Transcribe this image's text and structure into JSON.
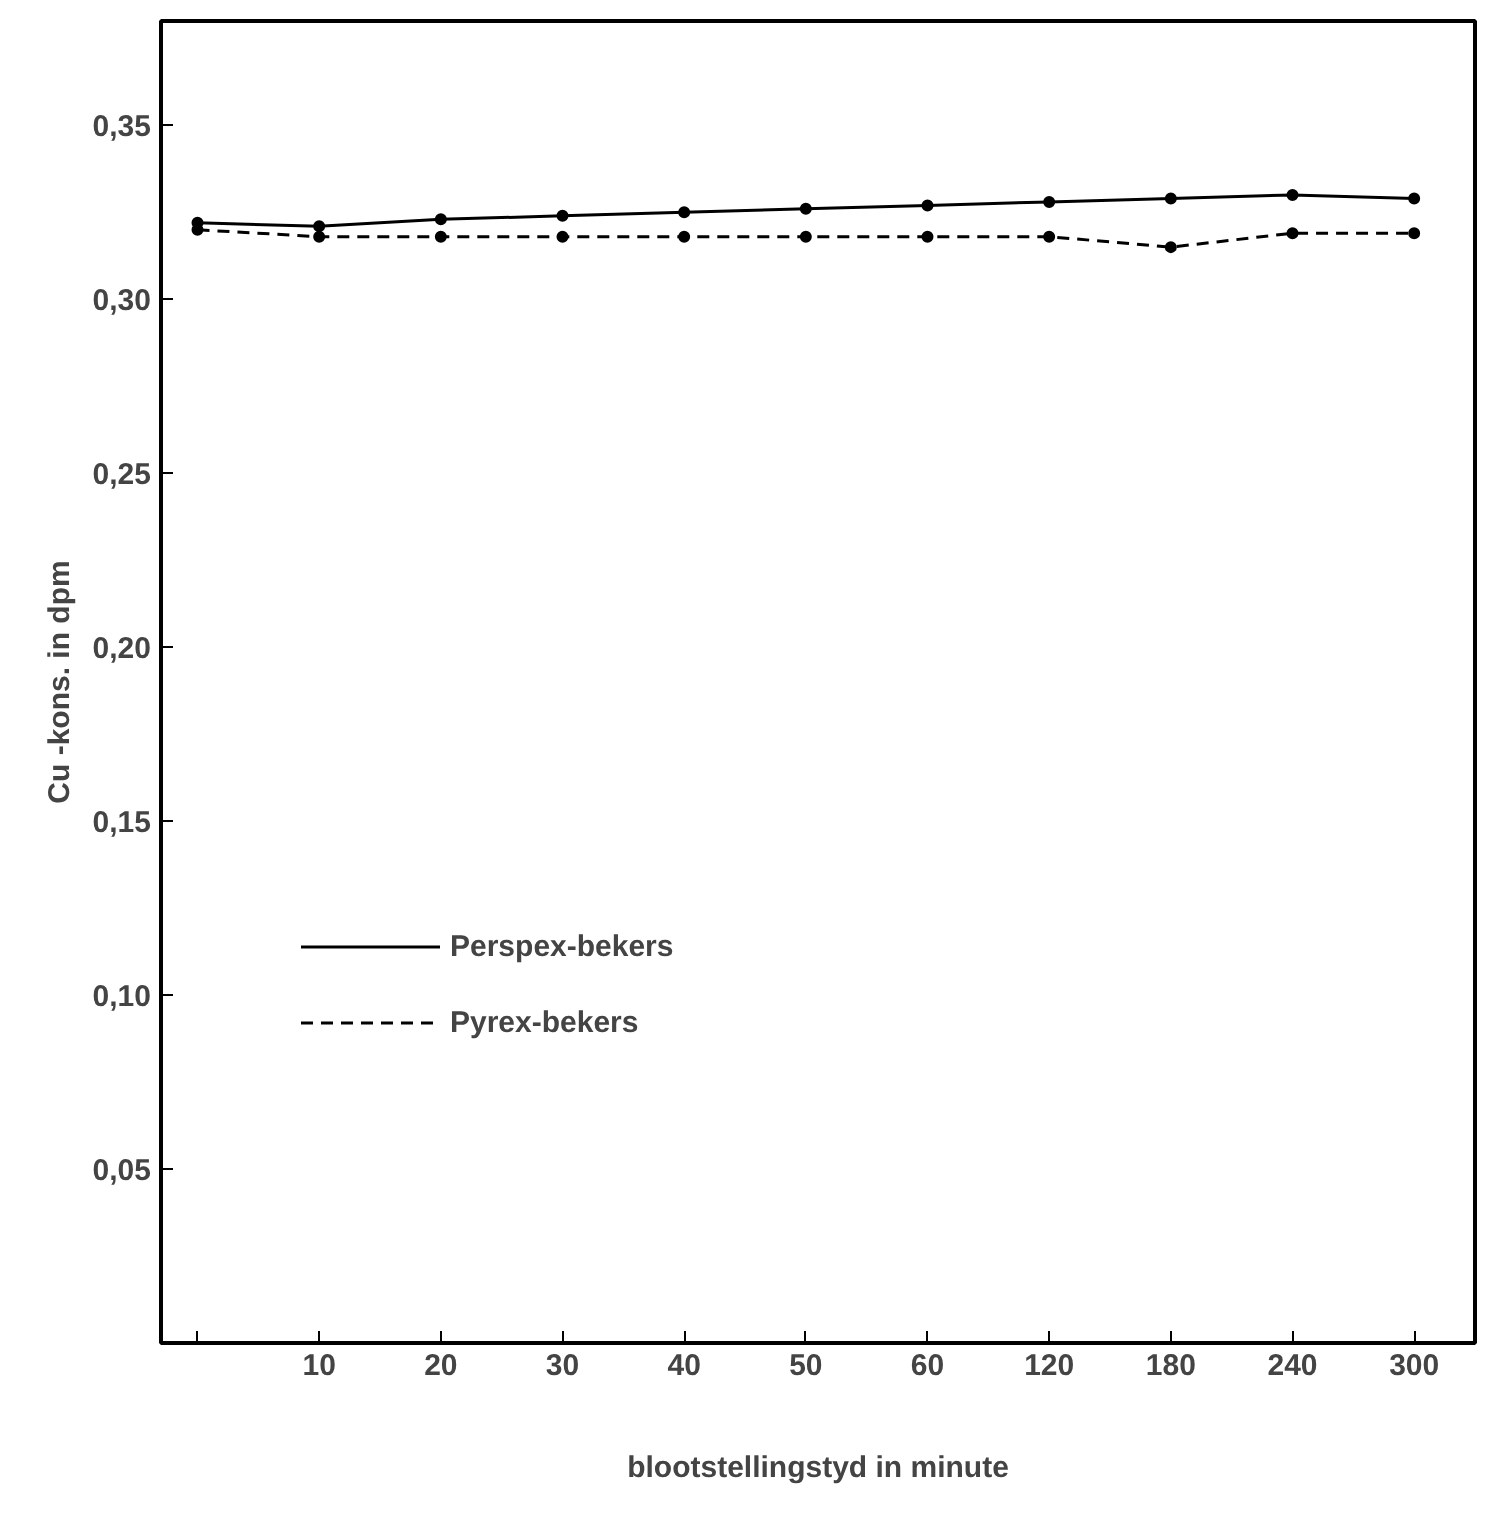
{
  "chart_data": {
    "type": "line",
    "xlabel": "blootstellingstyd in minute",
    "ylabel": "Cu -kons. in dpm",
    "categories": [
      null,
      "10",
      "20",
      "30",
      "40",
      "50",
      "60",
      "120",
      "180",
      "240",
      "300"
    ],
    "series": [
      {
        "name": "Perspex-bekers",
        "color": "#000000",
        "line_style": "solid",
        "values": [
          0.322,
          0.321,
          0.323,
          0.324,
          0.325,
          0.326,
          0.327,
          0.328,
          0.329,
          0.33,
          0.329
        ]
      },
      {
        "name": "Pyrex-bekers",
        "color": "#000000",
        "line_style": "dashed",
        "values": [
          0.32,
          0.318,
          0.318,
          0.318,
          0.318,
          0.318,
          0.318,
          0.318,
          0.315,
          0.319,
          0.319
        ]
      }
    ],
    "ylim": [
      0,
      0.38
    ],
    "yticks": [
      {
        "value": 0.05,
        "label": "0,05"
      },
      {
        "value": 0.1,
        "label": "0,10"
      },
      {
        "value": 0.15,
        "label": "0,15"
      },
      {
        "value": 0.2,
        "label": "0,20"
      },
      {
        "value": 0.25,
        "label": "0,25"
      },
      {
        "value": 0.3,
        "label": "0,30"
      },
      {
        "value": 0.35,
        "label": "0,35"
      }
    ],
    "marker": "circle",
    "grid": false,
    "legend": "bottom left"
  }
}
